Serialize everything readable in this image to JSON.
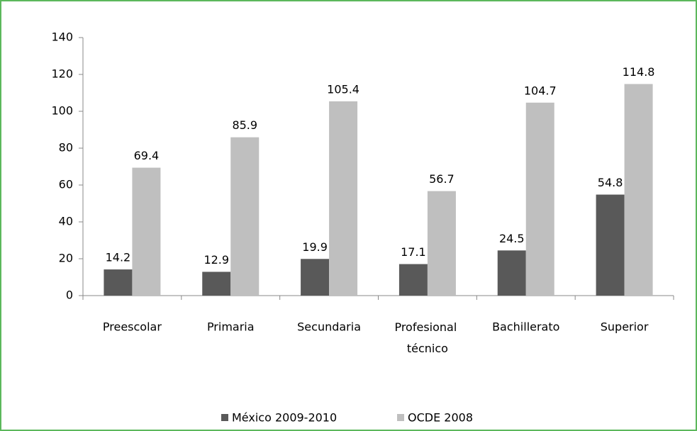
{
  "chart_data": {
    "type": "bar",
    "categories": [
      "Preescolar",
      "Primaria",
      "Secundaria",
      "Profesional técnico",
      "Bachillerato",
      "Superior"
    ],
    "series": [
      {
        "name": "México 2009-2010",
        "color": "#595959",
        "values": [
          14.2,
          12.9,
          19.9,
          17.1,
          24.5,
          54.8
        ]
      },
      {
        "name": "OCDE 2008",
        "color": "#bfbfbf",
        "values": [
          69.4,
          85.9,
          105.4,
          56.7,
          104.7,
          114.8
        ]
      }
    ],
    "ylim": [
      0,
      140
    ],
    "yticks": [
      0,
      20,
      40,
      60,
      80,
      100,
      120,
      140
    ],
    "grid": false,
    "legend": "bottom"
  }
}
